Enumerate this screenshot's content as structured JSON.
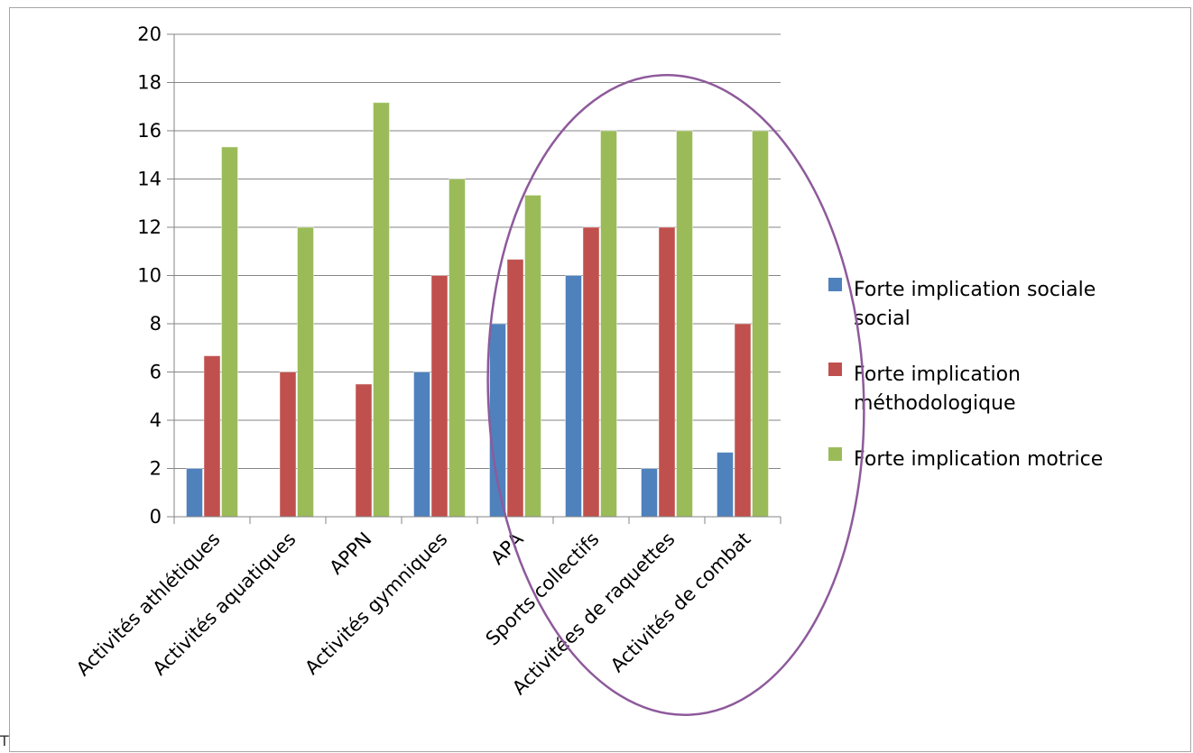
{
  "chart_data": {
    "type": "bar",
    "categories": [
      "Activités athlétiques",
      "Activités aquatiques",
      "APPN",
      "Activités gymniques",
      "APA",
      "Sports collectifs",
      "Activitées de raquettes",
      "Activités de combat"
    ],
    "series": [
      {
        "name": "Forte implication sociale social",
        "legend_lines": [
          "Forte implication sociale",
          "social"
        ],
        "color": "#4f81bd",
        "values": [
          2,
          0,
          0,
          6,
          8,
          10,
          2,
          2.67
        ]
      },
      {
        "name": "Forte implication méthodologique",
        "legend_lines": [
          "Forte implication",
          "méthodologique"
        ],
        "color": "#c0504d",
        "values": [
          6.67,
          6,
          5.5,
          10,
          10.67,
          12,
          12,
          8
        ]
      },
      {
        "name": "Forte implication motrice",
        "legend_lines": [
          "Forte implication motrice"
        ],
        "color": "#9bbb59",
        "values": [
          15.33,
          12,
          17.17,
          14,
          13.33,
          16,
          16,
          16
        ]
      }
    ],
    "y_ticks": [
      "0",
      "2",
      "4",
      "6",
      "8",
      "10",
      "12",
      "14",
      "16",
      "18",
      "20"
    ],
    "ylim": [
      0,
      20
    ],
    "grid": true,
    "legend_position": "right",
    "annotation": {
      "shape": "ellipse",
      "color": "#8e5a9b",
      "covers_categories": [
        "APA",
        "Sports collectifs",
        "Activitées de raquettes",
        "Activités de combat"
      ]
    }
  },
  "corner_mark": "T"
}
